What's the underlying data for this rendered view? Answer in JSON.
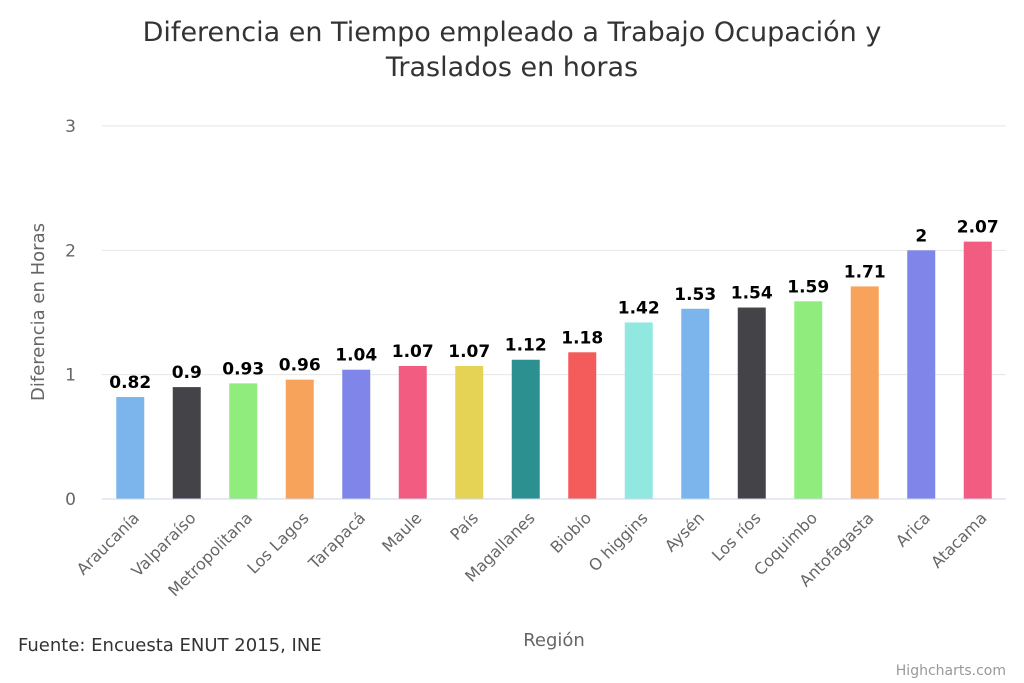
{
  "chart_data": {
    "type": "bar",
    "title": [
      "Diferencia en Tiempo empleado a Trabajo Ocupación y",
      "Traslados en horas"
    ],
    "xlabel": "Región",
    "ylabel": "Diferencia en Horas",
    "ylim": [
      0,
      3
    ],
    "yticks": [
      "0",
      "1",
      "2",
      "3"
    ],
    "grid": true,
    "legend": "none",
    "categories": [
      "Araucanía",
      "Valparaíso",
      "Metropolitana",
      "Los Lagos",
      "Tarapacá",
      "Maule",
      "País",
      "Magallanes",
      "Biobío",
      "O higgins",
      "Aysén",
      "Los ríos",
      "Coquimbo",
      "Antofagasta",
      "Arica",
      "Atacama"
    ],
    "values": [
      0.82,
      0.9,
      0.93,
      0.96,
      1.04,
      1.07,
      1.07,
      1.12,
      1.18,
      1.42,
      1.53,
      1.54,
      1.59,
      1.71,
      2,
      2.07
    ],
    "data_labels": [
      "0.82",
      "0.9",
      "0.93",
      "0.96",
      "1.04",
      "1.07",
      "1.07",
      "1.12",
      "1.18",
      "1.42",
      "1.53",
      "1.54",
      "1.59",
      "1.71",
      "2",
      "2.07"
    ],
    "colors": [
      "#7cb5ec",
      "#434348",
      "#90ed7d",
      "#f7a35c",
      "#8085e9",
      "#f15c80",
      "#e4d354",
      "#2b908f",
      "#f45b5b",
      "#91e8e1",
      "#7cb5ec",
      "#434348",
      "#90ed7d",
      "#f7a35c",
      "#8085e9",
      "#f15c80"
    ]
  },
  "source": "Fuente: Encuesta ENUT 2015, INE",
  "credits": "Highcharts.com"
}
